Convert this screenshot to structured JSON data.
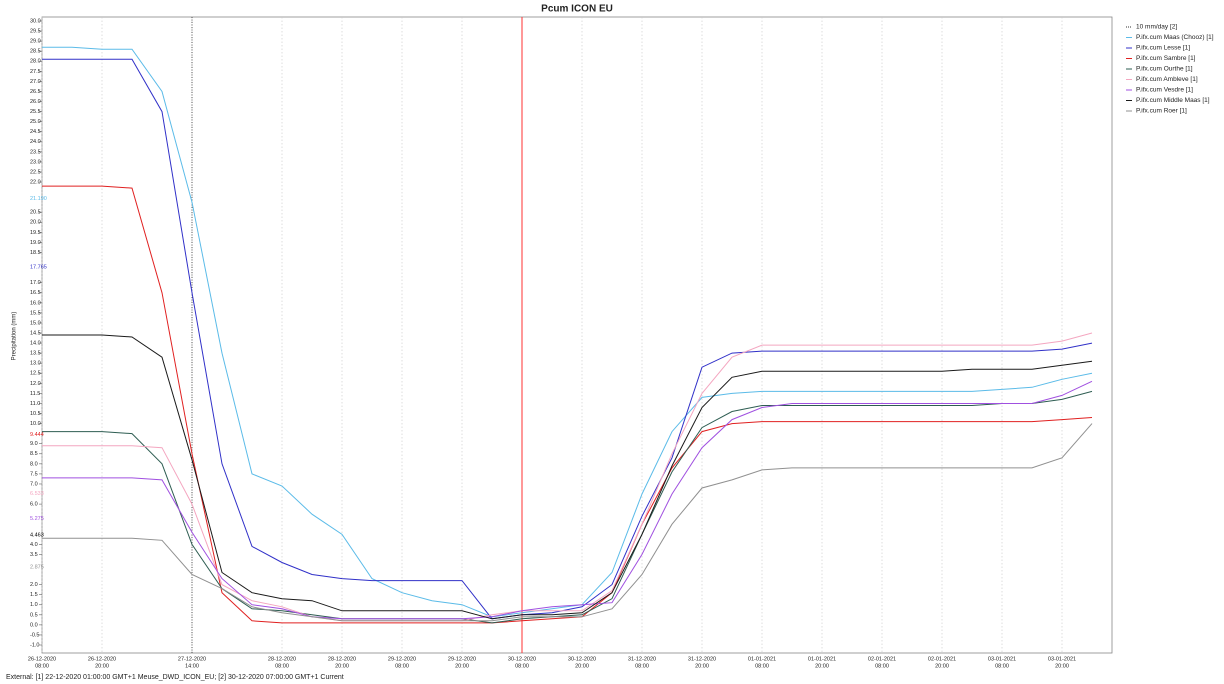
{
  "chart_data": {
    "type": "line",
    "title": "Pcum ICON EU",
    "ylabel": "Precipitation (mm)",
    "footer": "External: [1] 22-12-2020 01:00:00 GMT+1 Meuse_DWD_ICON_EU; [2] 30-12-2020 07:00:00 GMT+1 Current",
    "xlim": [
      "26-12-2020 08:00",
      "04-01-2021 06:00"
    ],
    "ylim": [
      -1.0,
      30.0
    ],
    "grid": true,
    "legend": "right",
    "x": [
      "26-12-2020 08:00",
      "26-12-2020 14:00",
      "26-12-2020 20:00",
      "27-12-2020 02:00",
      "27-12-2020 08:00",
      "27-12-2020 14:00",
      "27-12-2020 20:00",
      "28-12-2020 02:00",
      "28-12-2020 08:00",
      "28-12-2020 14:00",
      "28-12-2020 20:00",
      "29-12-2020 02:00",
      "29-12-2020 08:00",
      "29-12-2020 14:00",
      "29-12-2020 20:00",
      "30-12-2020 02:00",
      "30-12-2020 08:00",
      "30-12-2020 14:00",
      "30-12-2020 20:00",
      "31-12-2020 02:00",
      "31-12-2020 08:00",
      "31-12-2020 14:00",
      "31-12-2020 20:00",
      "01-01-2021 02:00",
      "01-01-2021 08:00",
      "01-01-2021 14:00",
      "01-01-2021 20:00",
      "02-01-2021 02:00",
      "02-01-2021 08:00",
      "02-01-2021 14:00",
      "02-01-2021 20:00",
      "03-01-2021 02:00",
      "03-01-2021 08:00",
      "03-01-2021 14:00",
      "03-01-2021 20:00",
      "04-01-2021 02:00"
    ],
    "xticks": [
      {
        "date": "26-12-2020",
        "time": "08:00"
      },
      {
        "date": "26-12-2020",
        "time": "20:00"
      },
      {
        "date": "27-12-2020",
        "time": "14:00"
      },
      {
        "date": "28-12-2020",
        "time": "08:00"
      },
      {
        "date": "28-12-2020",
        "time": "20:00"
      },
      {
        "date": "29-12-2020",
        "time": "08:00"
      },
      {
        "date": "29-12-2020",
        "time": "20:00"
      },
      {
        "date": "30-12-2020",
        "time": "08:00"
      },
      {
        "date": "30-12-2020",
        "time": "20:00"
      },
      {
        "date": "31-12-2020",
        "time": "08:00"
      },
      {
        "date": "31-12-2020",
        "time": "20:00"
      },
      {
        "date": "01-01-2021",
        "time": "08:00"
      },
      {
        "date": "01-01-2021",
        "time": "20:00"
      },
      {
        "date": "02-01-2021",
        "time": "08:00"
      },
      {
        "date": "02-01-2021",
        "time": "20:00"
      },
      {
        "date": "03-01-2021",
        "time": "08:00"
      },
      {
        "date": "03-01-2021",
        "time": "20:00"
      }
    ],
    "yticks": [
      {
        "value": 30,
        "label": "30.0"
      },
      29.5,
      {
        "value": 29,
        "label": "29.0"
      },
      28.5,
      {
        "value": 28,
        "label": "28.0"
      },
      27.5,
      {
        "value": 27,
        "label": "27.0"
      },
      26.5,
      {
        "value": 26,
        "label": "26.0"
      },
      25.5,
      {
        "value": 25,
        "label": "25.0"
      },
      24.5,
      {
        "value": 24,
        "label": "24.0"
      },
      23.5,
      {
        "value": 23,
        "label": "23.0"
      },
      22.5,
      {
        "value": 22,
        "label": "22.0"
      },
      20.5,
      {
        "value": 20,
        "label": "20.0"
      },
      19.5,
      {
        "value": 19,
        "label": "19.0"
      },
      18.5,
      {
        "value": 17,
        "label": "17.0"
      },
      16.5,
      {
        "value": 16,
        "label": "16.0"
      },
      15.5,
      {
        "value": 15,
        "label": "15.0"
      },
      14.5,
      {
        "value": 14,
        "label": "14.0"
      },
      13.5,
      {
        "value": 13,
        "label": "13.0"
      },
      12.5,
      {
        "value": 12,
        "label": "12.0"
      },
      11.5,
      {
        "value": 11,
        "label": "11.0"
      },
      10.5,
      {
        "value": 10,
        "label": "10.0"
      },
      {
        "value": 9,
        "label": "9.0"
      },
      8.5,
      {
        "value": 8,
        "label": "8.0"
      },
      7.5,
      {
        "value": 7,
        "label": "7.0"
      },
      {
        "value": 6,
        "label": "6.0"
      },
      {
        "value": 4,
        "label": "4.0"
      },
      3.5,
      {
        "value": 2,
        "label": "2.0"
      },
      1.5,
      {
        "value": 1,
        "label": "1.0"
      },
      0.5,
      {
        "value": 0,
        "label": "0.0"
      },
      -0.5,
      {
        "value": -1,
        "label": "-1.0"
      }
    ],
    "axis_markers": [
      {
        "value": 21.19,
        "label": "21.190",
        "color": "#5bbbe8"
      },
      {
        "value": 17.765,
        "label": "17.765",
        "color": "#3030c8"
      },
      {
        "value": 9.444,
        "label": "9.444",
        "color": "#e02020"
      },
      {
        "value": 6.533,
        "label": "6.533",
        "color": "#f4a6c0"
      },
      {
        "value": 5.275,
        "label": "5.275",
        "color": "#a050e0"
      },
      {
        "value": 4.463,
        "label": "4.463",
        "color": "#000000"
      },
      {
        "value": 2.875,
        "label": "2.875",
        "color": "#909090"
      }
    ],
    "vlines": [
      {
        "name": "10 mm/day [2]",
        "x": "27-12-2020 14:00",
        "color": "#333333",
        "dashed": true
      },
      {
        "x": "30-12-2020 08:00",
        "color": "#ff3030",
        "dashed": false
      }
    ],
    "series": [
      {
        "name": "P.ifx.cum Maas (Chooz) [1]",
        "color": "#5bbbe8",
        "values": [
          28.7,
          28.7,
          28.6,
          28.6,
          26.5,
          21.0,
          13.5,
          7.5,
          6.9,
          5.5,
          4.5,
          2.3,
          1.6,
          1.2,
          1.0,
          0.4,
          0.6,
          0.8,
          1.0,
          2.6,
          6.5,
          9.6,
          11.3,
          11.5,
          11.6,
          11.6,
          11.6,
          11.6,
          11.6,
          11.6,
          11.6,
          11.6,
          11.7,
          11.8,
          12.2,
          12.5
        ]
      },
      {
        "name": "P.ifx.cum Lesse [1]",
        "color": "#3030c8",
        "values": [
          28.1,
          28.1,
          28.1,
          28.1,
          25.5,
          16.5,
          8.0,
          3.9,
          3.1,
          2.5,
          2.3,
          2.2,
          2.2,
          2.2,
          2.2,
          0.3,
          0.5,
          0.6,
          0.9,
          2.0,
          5.4,
          8.3,
          12.8,
          13.5,
          13.6,
          13.6,
          13.6,
          13.6,
          13.6,
          13.6,
          13.6,
          13.6,
          13.6,
          13.6,
          13.7,
          14.0
        ]
      },
      {
        "name": "P.ifx.cum Sambre [1]",
        "color": "#e02020",
        "values": [
          21.8,
          21.8,
          21.8,
          21.7,
          16.5,
          8.5,
          1.6,
          0.2,
          0.1,
          0.1,
          0.1,
          0.1,
          0.1,
          0.1,
          0.1,
          0.1,
          0.2,
          0.3,
          0.4,
          1.6,
          5.0,
          7.8,
          9.6,
          10.0,
          10.1,
          10.1,
          10.1,
          10.1,
          10.1,
          10.1,
          10.1,
          10.1,
          10.1,
          10.1,
          10.2,
          10.3
        ]
      },
      {
        "name": "P.ifx.cum Ourthe [1]",
        "color": "#2e5d52",
        "values": [
          9.6,
          9.6,
          9.6,
          9.5,
          8.0,
          4.0,
          1.8,
          0.8,
          0.7,
          0.5,
          0.3,
          0.3,
          0.3,
          0.3,
          0.3,
          0.1,
          0.3,
          0.4,
          0.5,
          1.3,
          4.5,
          7.6,
          9.8,
          10.6,
          10.9,
          10.9,
          10.9,
          10.9,
          10.9,
          10.9,
          10.9,
          10.9,
          11.0,
          11.0,
          11.2,
          11.6
        ]
      },
      {
        "name": "P.ifx.cum Ambleve [1]",
        "color": "#f4a6c0",
        "values": [
          8.9,
          8.9,
          8.9,
          8.9,
          8.8,
          6.0,
          2.0,
          1.2,
          0.9,
          0.4,
          0.2,
          0.2,
          0.2,
          0.2,
          0.2,
          0.5,
          0.7,
          0.7,
          0.7,
          1.7,
          5.0,
          8.5,
          11.5,
          13.3,
          13.9,
          13.9,
          13.9,
          13.9,
          13.9,
          13.9,
          13.9,
          13.9,
          13.9,
          13.9,
          14.1,
          14.5
        ]
      },
      {
        "name": "P.ifx.cum Vesdre [1]",
        "color": "#a050e0",
        "values": [
          7.3,
          7.3,
          7.3,
          7.3,
          7.2,
          4.6,
          2.3,
          1.0,
          0.8,
          0.4,
          0.3,
          0.3,
          0.3,
          0.3,
          0.3,
          0.4,
          0.7,
          0.9,
          1.0,
          1.1,
          3.5,
          6.5,
          8.8,
          10.2,
          10.8,
          11.0,
          11.0,
          11.0,
          11.0,
          11.0,
          11.0,
          11.0,
          11.0,
          11.0,
          11.4,
          12.1
        ]
      },
      {
        "name": "P.ifx.cum Middle Maas [1]",
        "color": "#1a1a1a",
        "values": [
          14.4,
          14.4,
          14.4,
          14.3,
          13.3,
          8.2,
          2.6,
          1.6,
          1.3,
          1.2,
          0.7,
          0.7,
          0.7,
          0.7,
          0.7,
          0.3,
          0.5,
          0.5,
          0.6,
          1.6,
          4.5,
          7.9,
          10.8,
          12.3,
          12.6,
          12.6,
          12.6,
          12.6,
          12.6,
          12.6,
          12.6,
          12.7,
          12.7,
          12.7,
          12.9,
          13.1
        ]
      },
      {
        "name": "P.ifx.cum Roer [1]",
        "color": "#909090",
        "values": [
          4.3,
          4.3,
          4.3,
          4.3,
          4.2,
          2.5,
          1.8,
          0.9,
          0.6,
          0.4,
          0.2,
          0.2,
          0.2,
          0.2,
          0.2,
          0.2,
          0.4,
          0.4,
          0.4,
          0.8,
          2.5,
          5.0,
          6.8,
          7.2,
          7.7,
          7.8,
          7.8,
          7.8,
          7.8,
          7.8,
          7.8,
          7.8,
          7.8,
          7.8,
          8.3,
          10.0
        ]
      }
    ]
  }
}
